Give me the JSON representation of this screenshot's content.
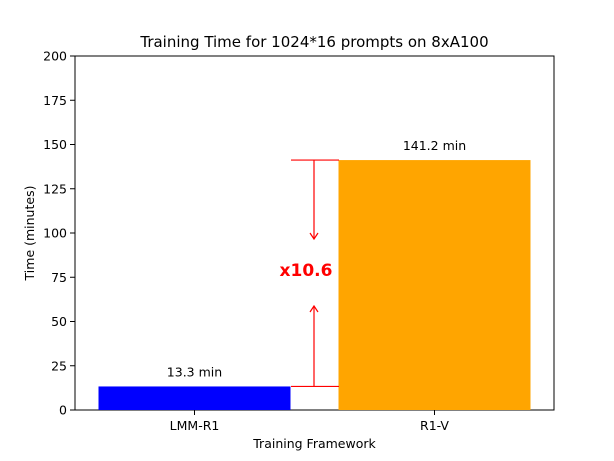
{
  "chart_data": {
    "type": "bar",
    "title": "Training Time for 1024*16 prompts on 8xA100",
    "xlabel": "Training Framework",
    "ylabel": "Time (minutes)",
    "ylim": [
      0,
      200
    ],
    "yticks": [
      0,
      25,
      50,
      75,
      100,
      125,
      150,
      175,
      200
    ],
    "categories": [
      "LMM-R1",
      "R1-V"
    ],
    "values": [
      13.3,
      141.2
    ],
    "data_labels": [
      "13.3 min",
      "141.2 min"
    ],
    "bar_colors": [
      "#0000ff",
      "#ffa500"
    ],
    "annotation": {
      "text": "x10.6",
      "color": "#ff0000"
    },
    "grid": false,
    "legend": "none"
  }
}
